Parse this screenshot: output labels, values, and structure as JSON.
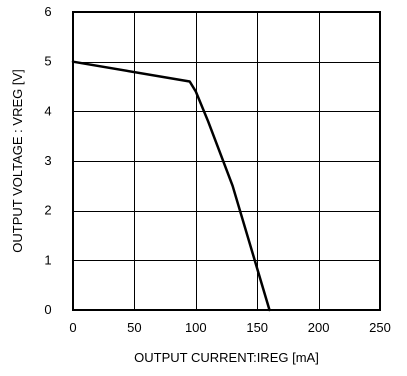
{
  "chart_data": {
    "type": "line",
    "title": "",
    "xlabel": "OUTPUT CURRENT:IREG [mA]",
    "ylabel": "OUTPUT VOLTAGE : VREG [V]",
    "xlim": [
      0,
      250
    ],
    "ylim": [
      0,
      6
    ],
    "xticks": [
      0,
      50,
      100,
      150,
      200,
      250
    ],
    "yticks": [
      0,
      1,
      2,
      3,
      4,
      5,
      6
    ],
    "grid": true,
    "series": [
      {
        "color": "#000000",
        "points": [
          [
            0,
            5.0
          ],
          [
            95,
            4.6
          ],
          [
            100,
            4.4
          ],
          [
            110,
            3.8
          ],
          [
            130,
            2.5
          ],
          [
            160,
            0
          ]
        ]
      }
    ]
  }
}
